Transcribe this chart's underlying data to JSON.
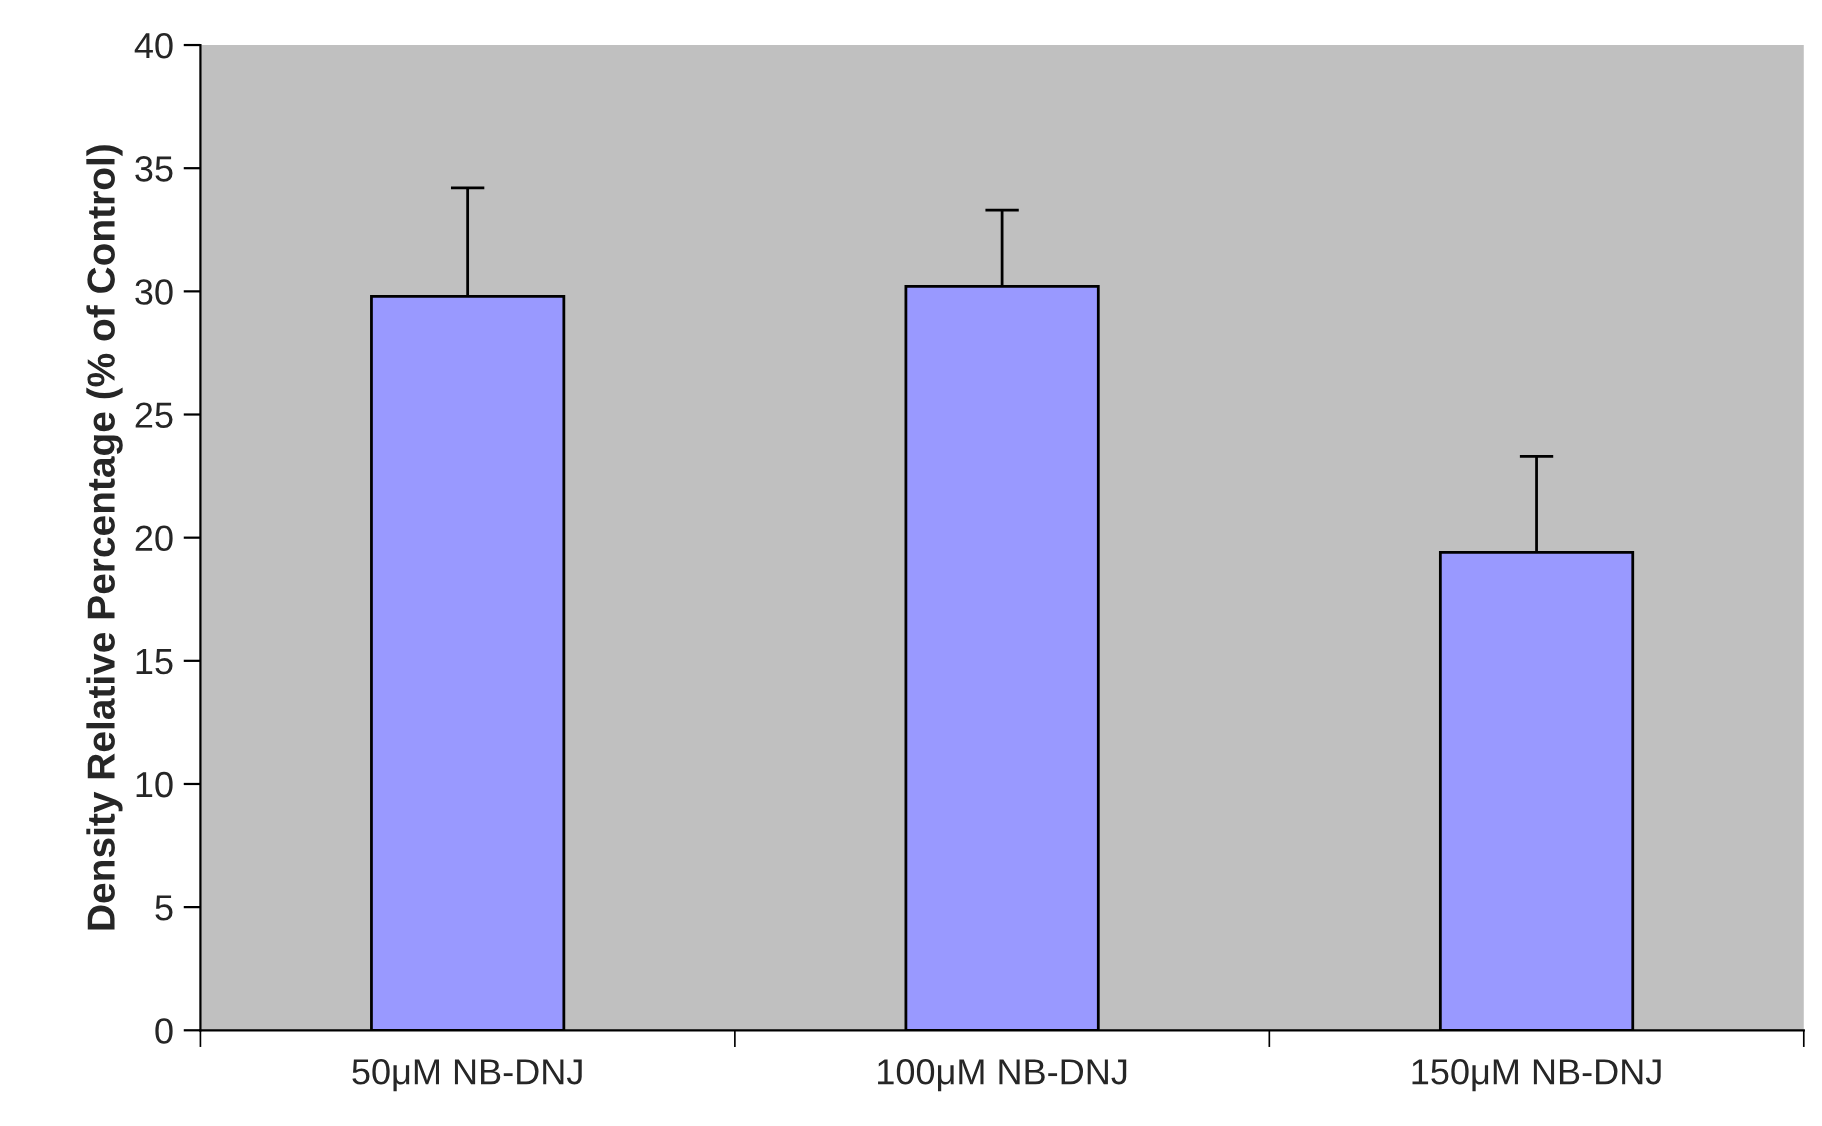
{
  "chart_data": {
    "type": "bar",
    "ylabel": "Density Relative Percentage (% of Control)",
    "categories": [
      "50μM NB-DNJ",
      "100μM NB-DNJ",
      "150μM NB-DNJ"
    ],
    "values": [
      29.8,
      30.2,
      19.4
    ],
    "errors": [
      4.4,
      3.1,
      3.9
    ],
    "color": "#9999ff",
    "ylim": [
      0,
      40
    ],
    "yticks": [
      0,
      5,
      10,
      15,
      20,
      25,
      30,
      35,
      40
    ],
    "grid": false,
    "legend": false
  }
}
